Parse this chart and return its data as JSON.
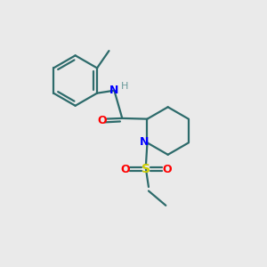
{
  "background_color": "#eaeaea",
  "bond_color": "#2d6b6b",
  "N_color": "#0000ff",
  "O_color": "#ff0000",
  "S_color": "#cccc00",
  "H_color": "#6a9a9a",
  "line_width": 1.6,
  "figsize": [
    3.0,
    3.0
  ],
  "dpi": 100,
  "xlim": [
    0,
    10
  ],
  "ylim": [
    0,
    10
  ]
}
